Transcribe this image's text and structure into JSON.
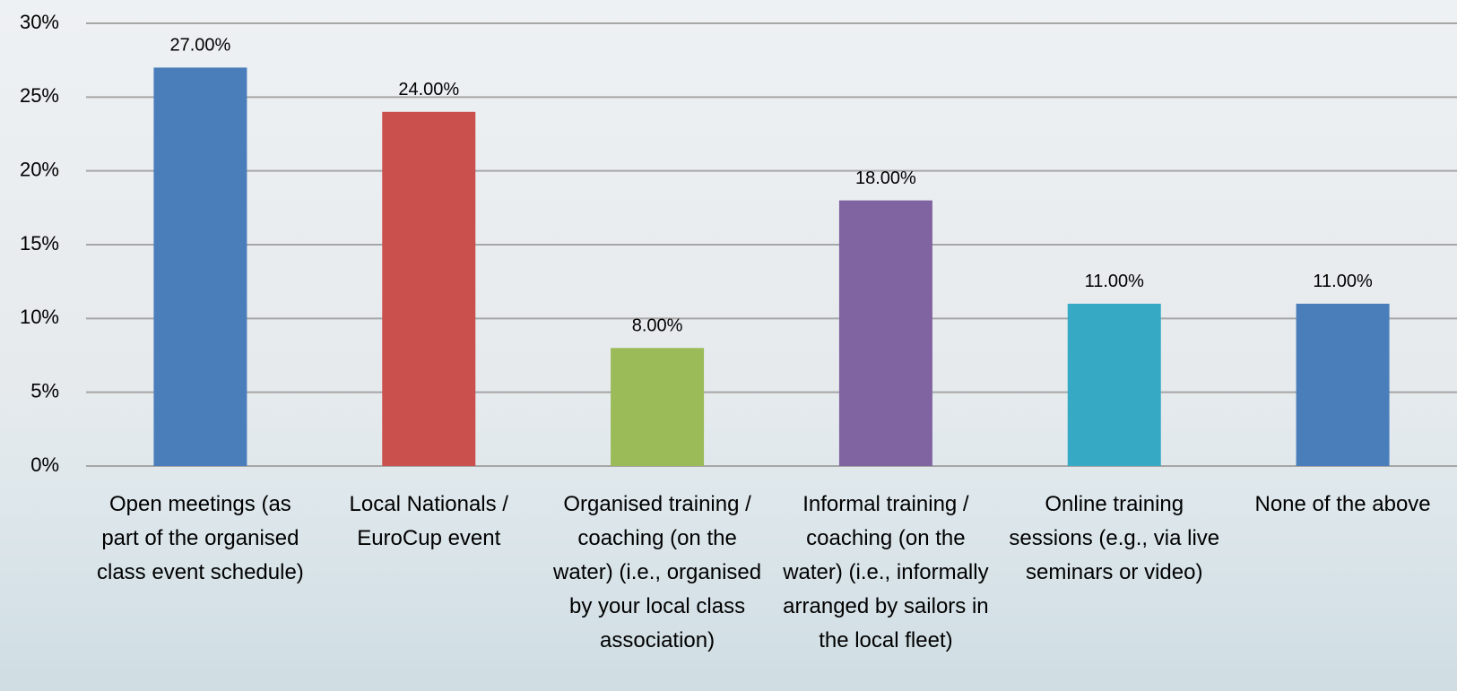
{
  "chart_data": {
    "type": "bar",
    "categories": [
      "Open meetings (as part of the organised class event schedule)",
      "Local Nationals / EuroCup event",
      "Organised training / coaching (on the water) (i.e., organised by your local class association)",
      "Informal training / coaching (on the water) (i.e., informally arranged by sailors in the local fleet)",
      "Online training sessions (e.g., via live seminars or video)",
      "None of the above"
    ],
    "values": [
      27,
      24,
      8,
      18,
      11,
      11
    ],
    "value_labels": [
      "27.00%",
      "24.00%",
      "8.00%",
      "18.00%",
      "11.00%",
      "11.00%"
    ],
    "colors": [
      "#4a7ebb",
      "#c9504d",
      "#9bbb59",
      "#8064a2",
      "#36a9c4",
      "#4a7ebb"
    ],
    "ylim": [
      0,
      30
    ],
    "yticks": [
      {
        "value": 0,
        "label": "0%"
      },
      {
        "value": 5,
        "label": "5%"
      },
      {
        "value": 10,
        "label": "10%"
      },
      {
        "value": 15,
        "label": "15%"
      },
      {
        "value": 20,
        "label": "20%"
      },
      {
        "value": 25,
        "label": "25%"
      },
      {
        "value": 30,
        "label": "30%"
      }
    ],
    "grid": true
  }
}
